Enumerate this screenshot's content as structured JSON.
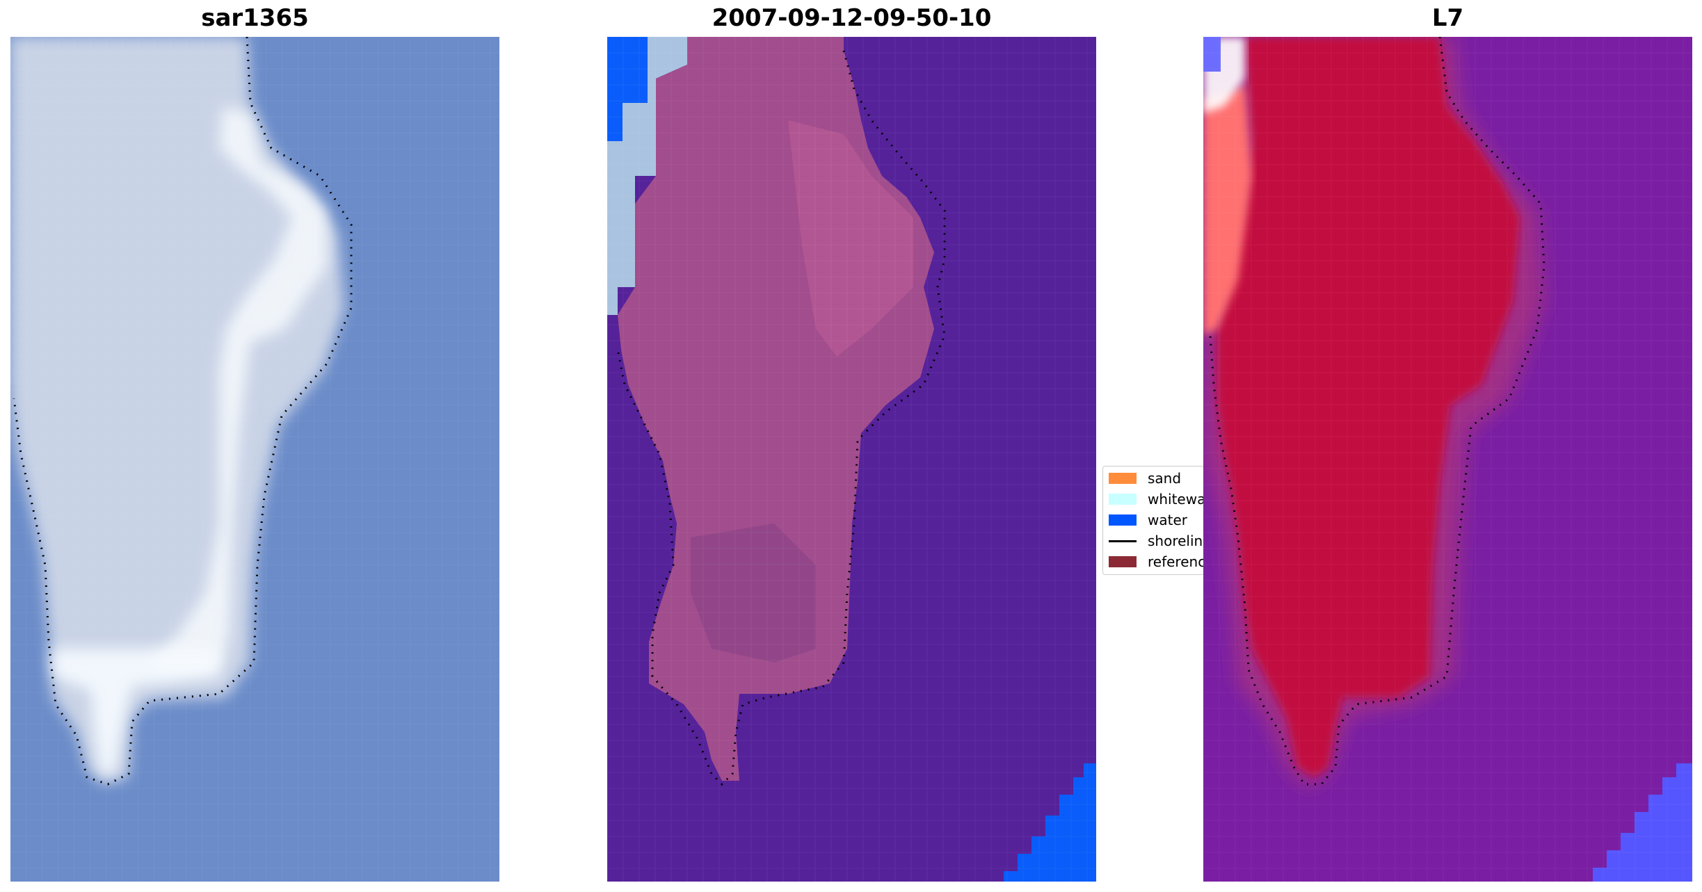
{
  "panels": [
    {
      "title": "sar1365"
    },
    {
      "title": "2007-09-12-09-50-10"
    },
    {
      "title": "L7"
    }
  ],
  "legend": {
    "items": [
      {
        "label": "sand",
        "color": "#ff8c3a"
      },
      {
        "label": "whitewater",
        "color": "#c8ffff"
      },
      {
        "label": "water",
        "color": "#0057ff"
      },
      {
        "label": "shoreline",
        "color": "#000000"
      },
      {
        "label": "reference",
        "color": "#8b2a34"
      }
    ]
  }
}
